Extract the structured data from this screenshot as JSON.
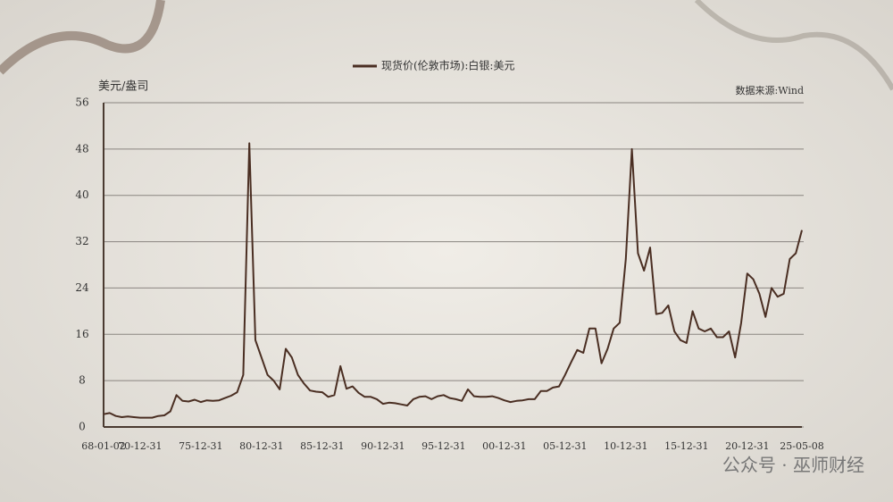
{
  "chart_data": {
    "type": "line",
    "y_label": "美元/盎司",
    "source": "数据来源:Wind",
    "watermark": "公众号 · 巫师财经",
    "categories": [
      "68-01-02",
      null,
      null,
      null,
      null,
      null,
      "70-12-31",
      null,
      null,
      null,
      null,
      null,
      null,
      null,
      null,
      null,
      "75-12-31",
      null,
      null,
      null,
      null,
      null,
      null,
      null,
      null,
      null,
      "80-12-31",
      null,
      null,
      null,
      null,
      null,
      null,
      null,
      null,
      null,
      "85-12-31",
      null,
      null,
      null,
      null,
      null,
      null,
      null,
      null,
      null,
      "90-12-31",
      null,
      null,
      null,
      null,
      null,
      null,
      null,
      null,
      null,
      "95-12-31",
      null,
      null,
      null,
      null,
      null,
      null,
      null,
      null,
      null,
      "00-12-31",
      null,
      null,
      null,
      null,
      null,
      null,
      null,
      null,
      null,
      "05-12-31",
      null,
      null,
      null,
      null,
      null,
      null,
      null,
      null,
      null,
      "10-12-31",
      null,
      null,
      null,
      null,
      null,
      null,
      null,
      null,
      null,
      "15-12-31",
      null,
      null,
      null,
      null,
      null,
      null,
      null,
      null,
      null,
      "20-12-31",
      null,
      null,
      null,
      null,
      null,
      null,
      null,
      null,
      "25-05-08"
    ],
    "series": [
      {
        "name": "现货价(伦敦市场):白银:美元",
        "color": "#4a2e22",
        "values": [
          2.2,
          2.4,
          1.9,
          1.7,
          1.8,
          1.7,
          1.6,
          1.6,
          1.6,
          1.9,
          2.0,
          2.7,
          5.5,
          4.5,
          4.4,
          4.7,
          4.3,
          4.6,
          4.5,
          4.6,
          5.0,
          5.4,
          6.0,
          9,
          49,
          15,
          12,
          9,
          8,
          6.5,
          13.5,
          12,
          9,
          7.5,
          6.3,
          6.1,
          6,
          5.2,
          5.5,
          10.5,
          6.6,
          7.0,
          5.9,
          5.2,
          5.2,
          4.8,
          4.0,
          4.2,
          4.1,
          3.9,
          3.7,
          4.8,
          5.2,
          5.3,
          4.8,
          5.3,
          5.5,
          5.0,
          4.8,
          4.5,
          6.5,
          5.3,
          5.2,
          5.2,
          5.3,
          5.0,
          4.6,
          4.3,
          4.5,
          4.6,
          4.8,
          4.8,
          6.2,
          6.2,
          6.8,
          7.0,
          9.0,
          11.2,
          13.3,
          12.8,
          17,
          17,
          11,
          13.5,
          17,
          18,
          29,
          48,
          30,
          27,
          31,
          19.5,
          19.7,
          21,
          16.5,
          15,
          14.5,
          20,
          17,
          16.5,
          17,
          15.5,
          15.5,
          16.5,
          12,
          18,
          26.5,
          25.5,
          23,
          19,
          24,
          22.5,
          23,
          29,
          30,
          34
        ]
      }
    ],
    "ylim": [
      0,
      56
    ],
    "yticks": [
      0,
      8,
      16,
      24,
      32,
      40,
      48,
      56
    ],
    "grid": true
  }
}
